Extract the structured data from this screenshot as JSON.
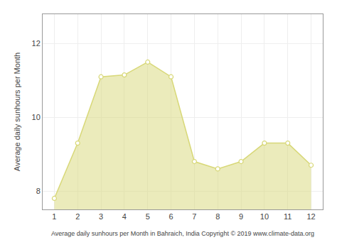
{
  "chart_data": {
    "type": "area",
    "x": [
      1,
      2,
      3,
      4,
      5,
      6,
      7,
      8,
      9,
      10,
      11,
      12
    ],
    "values": [
      7.8,
      9.3,
      11.1,
      11.15,
      11.5,
      11.1,
      8.8,
      8.6,
      8.8,
      9.3,
      9.3,
      8.7
    ],
    "color": "#D8D878",
    "marker": "circle",
    "xlim": [
      0.5,
      12.5
    ],
    "ylim": [
      7.5,
      12.8
    ],
    "xticks": [
      1,
      2,
      3,
      4,
      5,
      6,
      7,
      8,
      9,
      10,
      11,
      12
    ],
    "yticks": [
      8,
      10,
      12
    ],
    "ylabel": "Average daily sunhours per Month",
    "xlabel": "Average daily sunhours per Month in Bahraich, India Copyright © 2019 www.climate-data.org",
    "grid": true
  }
}
